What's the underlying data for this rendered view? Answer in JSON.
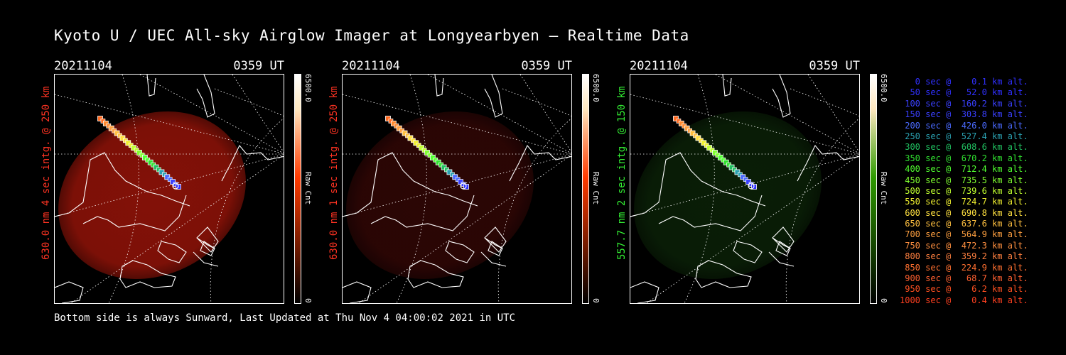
{
  "title": "Kyoto U / UEC All-sky Airglow Imager at Longyearbyen — Realtime Data",
  "footer": "Bottom side is always Sunward, Last Updated at Thu Nov  4 04:00:02 2021 in UTC",
  "panels": [
    {
      "date": "20211104",
      "time": "0359 UT",
      "ylabel": "630.0 nm 4 sec intg. @ 250 km",
      "ylabel_color": "#ff3322",
      "cb_max": "6500.0",
      "cb_min": "0",
      "cb_label": "Raw Cnt",
      "cb_color": "#ff3a00",
      "blob": "#8a1208",
      "blob_opacity": "1.0"
    },
    {
      "date": "20211104",
      "time": "0359 UT",
      "ylabel": "630.0 nm 1 sec intg. @ 250 km",
      "ylabel_color": "#ff3322",
      "cb_max": "6500.0",
      "cb_min": "0",
      "cb_label": "Raw Cnt",
      "cb_color": "#ff3a00",
      "blob": "#2e0605",
      "blob_opacity": "1.0"
    },
    {
      "date": "20211104",
      "time": "0359 UT",
      "ylabel": "557.7 nm 2 sec intg. @ 150 km",
      "ylabel_color": "#33ee33",
      "cb_max": "6500.0",
      "cb_min": "0",
      "cb_label": "Raw Cnt",
      "cb_color": "#2e9a00",
      "blob": "#0a1f07",
      "blob_opacity": "1.0"
    }
  ],
  "legend": [
    {
      "text": "   0 sec @    0.1 km alt.",
      "color": "#3030ff"
    },
    {
      "text": "  50 sec @   52.0 km alt.",
      "color": "#3030ff"
    },
    {
      "text": " 100 sec @  160.2 km alt.",
      "color": "#3a40ff"
    },
    {
      "text": " 150 sec @  303.8 km alt.",
      "color": "#3a40ff"
    },
    {
      "text": " 200 sec @  426.0 km alt.",
      "color": "#4a6aff"
    },
    {
      "text": " 250 sec @  527.4 km alt.",
      "color": "#2aa0b0"
    },
    {
      "text": " 300 sec @  608.6 km alt.",
      "color": "#20c060"
    },
    {
      "text": " 350 sec @  670.2 km alt.",
      "color": "#30e030"
    },
    {
      "text": " 400 sec @  712.4 km alt.",
      "color": "#50ff30"
    },
    {
      "text": " 450 sec @  735.5 km alt.",
      "color": "#80ff30"
    },
    {
      "text": " 500 sec @  739.6 km alt.",
      "color": "#c0ff30"
    },
    {
      "text": " 550 sec @  724.7 km alt.",
      "color": "#f0f030"
    },
    {
      "text": " 600 sec @  690.8 km alt.",
      "color": "#ffe040"
    },
    {
      "text": " 650 sec @  637.6 km alt.",
      "color": "#ffc040"
    },
    {
      "text": " 700 sec @  564.9 km alt.",
      "color": "#ffa040"
    },
    {
      "text": " 750 sec @  472.3 km alt.",
      "color": "#ff9040"
    },
    {
      "text": " 800 sec @  359.2 km alt.",
      "color": "#ff8040"
    },
    {
      "text": " 850 sec @  224.9 km alt.",
      "color": "#ff7030"
    },
    {
      "text": " 900 sec @   68.7 km alt.",
      "color": "#ff6030"
    },
    {
      "text": " 950 sec @    6.2 km alt.",
      "color": "#ff5020"
    },
    {
      "text": "1000 sec @    0.4 km alt.",
      "color": "#ff4020"
    }
  ],
  "track_colors": [
    "#ff6a20",
    "#ff8a30",
    "#ffa040",
    "#ffc040",
    "#ffe040",
    "#f0f030",
    "#c0ff30",
    "#80ff30",
    "#50ff30",
    "#30e030",
    "#20c060",
    "#2aa0b0",
    "#4a6aff",
    "#3a40ff",
    "#3030ff"
  ]
}
